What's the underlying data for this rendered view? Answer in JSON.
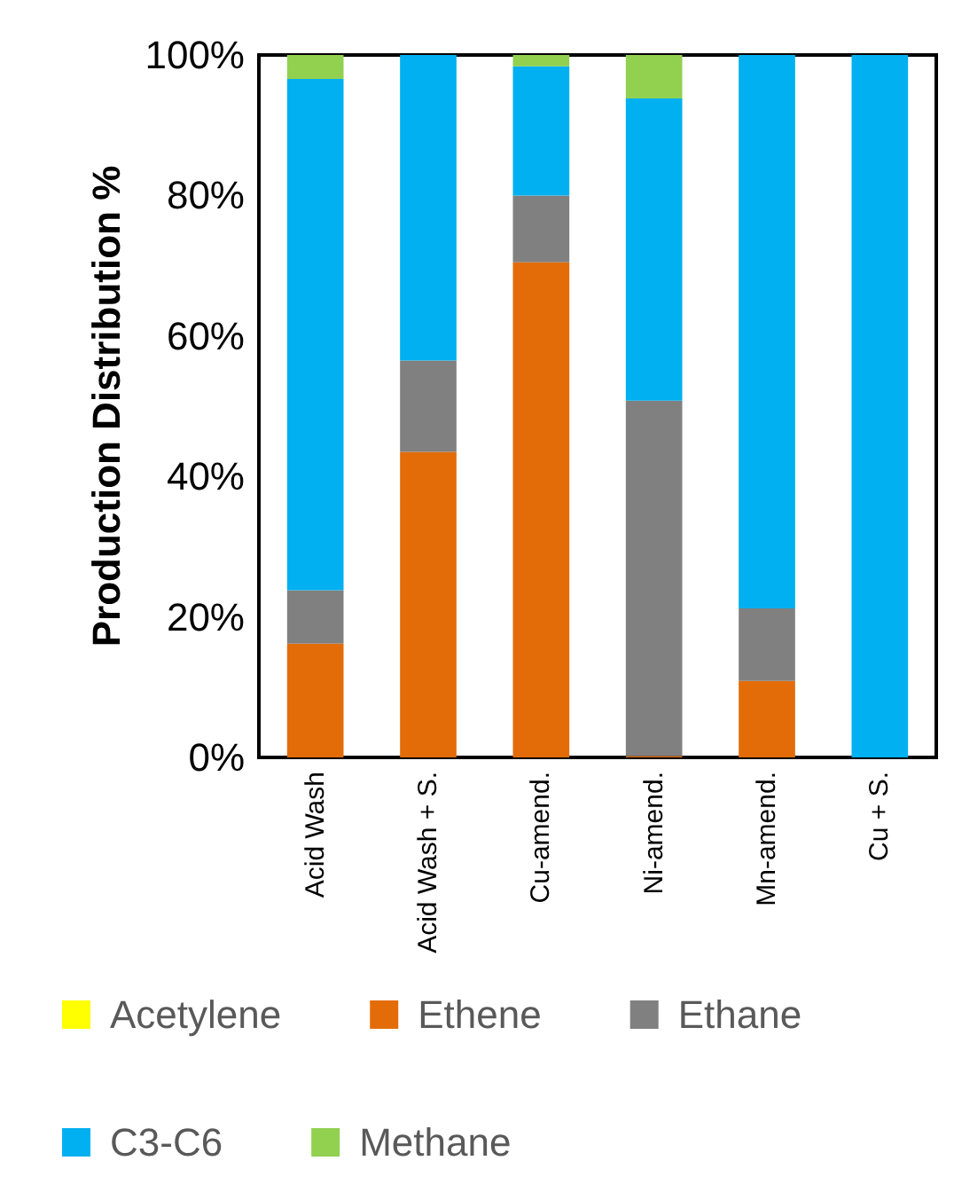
{
  "chart_data": {
    "type": "bar",
    "stacked": true,
    "ylabel": "Production Distribution %",
    "categories": [
      "Acid Wash",
      "Acid Wash + S.",
      "Cu-amend.",
      "Ni-amend.",
      "Mn-amend.",
      "Cu + S."
    ],
    "series": [
      {
        "name": "Acetylene",
        "color": "#ffff00",
        "values": [
          0,
          0,
          0,
          0,
          0,
          0
        ]
      },
      {
        "name": "Ethene",
        "color": "#e36c09",
        "values": [
          16.2,
          43.5,
          70.5,
          0.2,
          10.9,
          0
        ]
      },
      {
        "name": "Ethane",
        "color": "#808080",
        "values": [
          7.6,
          13.0,
          9.5,
          50.6,
          10.3,
          0
        ]
      },
      {
        "name": "C3-C6",
        "color": "#00b0f0",
        "values": [
          72.8,
          43.5,
          18.4,
          43.0,
          78.8,
          100
        ]
      },
      {
        "name": "Methane",
        "color": "#92d050",
        "values": [
          3.4,
          0,
          1.6,
          6.2,
          0,
          0
        ]
      }
    ],
    "ylim": [
      0,
      100
    ],
    "yticks": [
      {
        "value": 0,
        "label": "0%"
      },
      {
        "value": 20,
        "label": "20%"
      },
      {
        "value": 40,
        "label": "40%"
      },
      {
        "value": 60,
        "label": "60%"
      },
      {
        "value": 80,
        "label": "80%"
      },
      {
        "value": 100,
        "label": "100%"
      }
    ],
    "grid": false,
    "legend": "bottom"
  }
}
